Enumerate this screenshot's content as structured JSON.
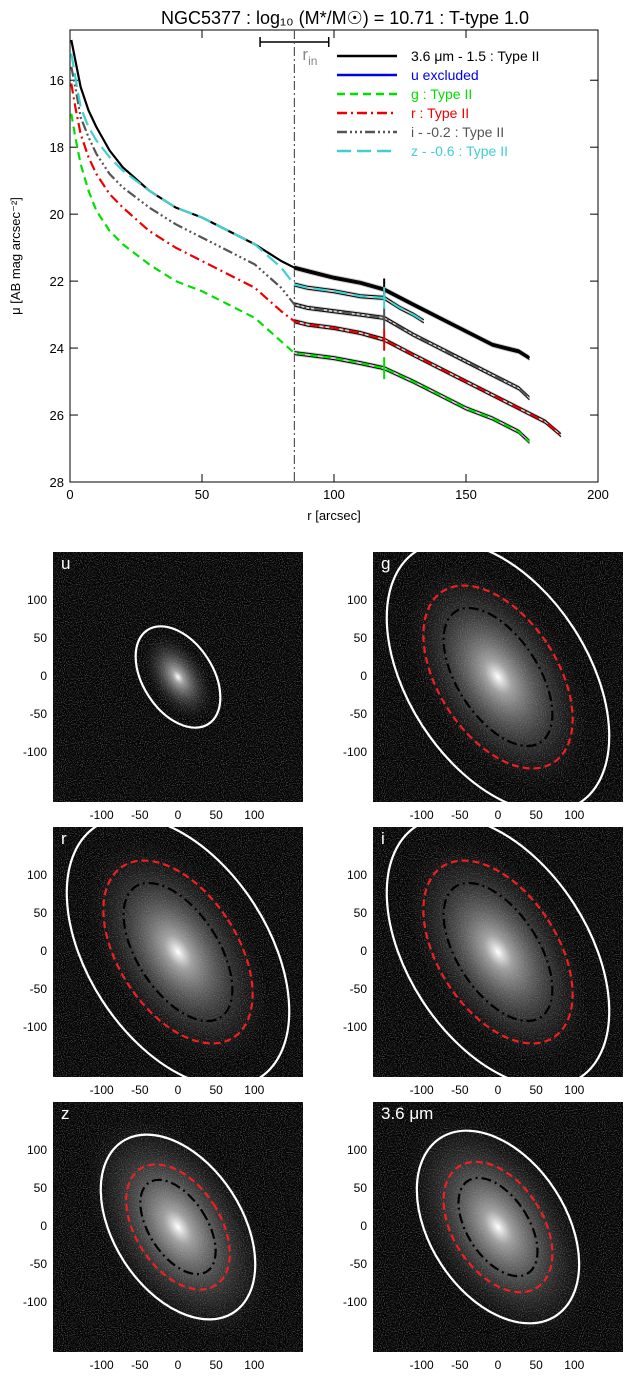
{
  "chart_data": {
    "type": "line",
    "title": "NGC5377 : log₁₀ (M*/M☉) = 10.71 : T-type 1.0",
    "xlabel": "r [arcsec]",
    "ylabel": "μ [AB mag arcsec⁻²]",
    "xlim": [
      0,
      200
    ],
    "ylim": [
      28,
      14.5
    ],
    "x_ticks": [
      "0",
      "50",
      "100",
      "150",
      "200"
    ],
    "y_ticks": [
      "16",
      "18",
      "20",
      "22",
      "24",
      "26",
      "28"
    ],
    "r_in": 85,
    "r_in_range": [
      72,
      98
    ],
    "r_in_label": "r",
    "r_in_sub": "in",
    "break_radius": 119,
    "grid": false,
    "legend_position": "top-right",
    "series": [
      {
        "name": "3.6 μm - 1.5 : Type II",
        "color": "#000000",
        "dash": "",
        "x": [
          0.5,
          2,
          4,
          7,
          10,
          15,
          20,
          30,
          40,
          50,
          60,
          70,
          80,
          85,
          90,
          100,
          110,
          119,
          130,
          140,
          150,
          160,
          165,
          170,
          174
        ],
        "y": [
          14.8,
          15.4,
          16.2,
          16.9,
          17.4,
          18.1,
          18.6,
          19.3,
          19.8,
          20.1,
          20.5,
          20.9,
          21.4,
          21.6,
          21.7,
          21.9,
          22.05,
          22.25,
          22.7,
          23.1,
          23.5,
          23.9,
          24.0,
          24.1,
          24.3
        ]
      },
      {
        "name": "u excluded",
        "color": "#0000ee",
        "dash": "",
        "x": [],
        "y": []
      },
      {
        "name": "g : Type II",
        "color": "#00e000",
        "dash": "8,5",
        "x": [
          0.5,
          2,
          4,
          7,
          10,
          15,
          20,
          30,
          40,
          50,
          60,
          70,
          80,
          85,
          90,
          100,
          110,
          119,
          130,
          140,
          150,
          160,
          170,
          174
        ],
        "y": [
          17.0,
          17.7,
          18.5,
          19.3,
          19.9,
          20.5,
          20.9,
          21.5,
          22.0,
          22.3,
          22.7,
          23.1,
          23.8,
          24.15,
          24.2,
          24.3,
          24.45,
          24.6,
          25.0,
          25.4,
          25.8,
          26.1,
          26.5,
          26.8
        ]
      },
      {
        "name": "r : Type II",
        "color": "#ee0000",
        "dash": "10,4,2,4",
        "x": [
          0.5,
          2,
          4,
          7,
          10,
          15,
          20,
          30,
          40,
          50,
          60,
          70,
          80,
          85,
          90,
          100,
          110,
          119,
          130,
          140,
          150,
          160,
          170,
          180,
          186
        ],
        "y": [
          16.1,
          16.8,
          17.6,
          18.3,
          18.8,
          19.4,
          19.8,
          20.5,
          21.0,
          21.4,
          21.8,
          22.2,
          22.9,
          23.2,
          23.3,
          23.4,
          23.55,
          23.75,
          24.2,
          24.6,
          25.0,
          25.4,
          25.8,
          26.2,
          26.6
        ]
      },
      {
        "name": "i - -0.2 : Type II",
        "color": "#555555",
        "dash": "10,3,2,3,2,3,2,3",
        "x": [
          0.5,
          2,
          4,
          7,
          10,
          15,
          20,
          30,
          40,
          50,
          60,
          70,
          80,
          85,
          90,
          100,
          110,
          119,
          130,
          140,
          150,
          160,
          170,
          174
        ],
        "y": [
          15.6,
          16.2,
          17.1,
          17.7,
          18.2,
          18.8,
          19.2,
          19.8,
          20.3,
          20.7,
          21.1,
          21.5,
          22.2,
          22.7,
          22.8,
          22.9,
          23.0,
          23.1,
          23.6,
          24.0,
          24.4,
          24.8,
          25.2,
          25.5
        ]
      },
      {
        "name": "z - -0.6 : Type II",
        "color": "#40d0d0",
        "dash": "14,6",
        "x": [
          0.5,
          2,
          4,
          7,
          10,
          15,
          20,
          30,
          40,
          50,
          60,
          70,
          80,
          85,
          90,
          100,
          110,
          119,
          125,
          130,
          134
        ],
        "y": [
          15.2,
          15.9,
          16.8,
          17.4,
          17.8,
          18.3,
          18.7,
          19.3,
          19.8,
          20.1,
          20.5,
          20.9,
          21.6,
          22.1,
          22.2,
          22.3,
          22.45,
          22.5,
          22.8,
          23.0,
          23.2
        ]
      }
    ]
  },
  "images": {
    "axis_ticks": [
      "100",
      "50",
      "0",
      "-50",
      "-100"
    ],
    "x_ticks": [
      "-100",
      "-50",
      "0",
      "50",
      "100"
    ],
    "panels": [
      {
        "label": "u"
      },
      {
        "label": "g"
      },
      {
        "label": "r"
      },
      {
        "label": "i"
      },
      {
        "label": "z"
      },
      {
        "label": "3.6 μm"
      }
    ]
  },
  "colors": {
    "ellipse_outer": "#ffffff",
    "ellipse_break": "#ee2020",
    "ellipse_inner": "#000000",
    "panel_bg": "#030303"
  }
}
